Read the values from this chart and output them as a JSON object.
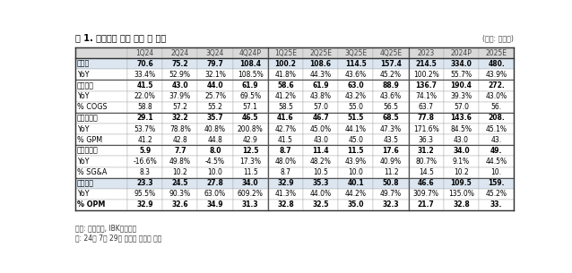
{
  "title": "표 1. 산일전기 실적 추이 및 전망",
  "unit": "(단위: 십억원)",
  "footnote1": "자료: 산일전기, IBK투자증권",
  "footnote2": "주: 24년 7월 29일 코스피 시장에 상장",
  "columns": [
    "",
    "1Q24",
    "2Q24",
    "3Q24",
    "4Q24P",
    "1Q25E",
    "2Q25E",
    "3Q25E",
    "4Q25E",
    "2023",
    "2024P",
    "2025E"
  ],
  "rows": [
    {
      "label": "매출액",
      "bold": true,
      "highlight": true,
      "sep_above": true,
      "values": [
        "70.6",
        "75.2",
        "79.7",
        "108.4",
        "100.2",
        "108.6",
        "114.5",
        "157.4",
        "214.5",
        "334.0",
        "480."
      ]
    },
    {
      "label": "YoY",
      "bold": false,
      "highlight": false,
      "sep_above": false,
      "values": [
        "33.4%",
        "52.9%",
        "32.1%",
        "108.5%",
        "41.8%",
        "44.3%",
        "43.6%",
        "45.2%",
        "100.2%",
        "55.7%",
        "43.9%"
      ]
    },
    {
      "label": "매출원가",
      "bold": true,
      "highlight": false,
      "sep_above": true,
      "values": [
        "41.5",
        "43.0",
        "44.0",
        "61.9",
        "58.6",
        "61.9",
        "63.0",
        "88.9",
        "136.7",
        "190.4",
        "272."
      ]
    },
    {
      "label": "YoY",
      "bold": false,
      "highlight": false,
      "sep_above": false,
      "values": [
        "22.0%",
        "37.9%",
        "25.7%",
        "69.5%",
        "41.2%",
        "43.8%",
        "43.2%",
        "43.6%",
        "74.1%",
        "39.3%",
        "43.0%"
      ]
    },
    {
      "label": "% COGS",
      "bold": false,
      "highlight": false,
      "sep_above": false,
      "values": [
        "58.8",
        "57.2",
        "55.2",
        "57.1",
        "58.5",
        "57.0",
        "55.0",
        "56.5",
        "63.7",
        "57.0",
        "56."
      ]
    },
    {
      "label": "매출총이익",
      "bold": true,
      "highlight": false,
      "sep_above": true,
      "values": [
        "29.1",
        "32.2",
        "35.7",
        "46.5",
        "41.6",
        "46.7",
        "51.5",
        "68.5",
        "77.8",
        "143.6",
        "208."
      ]
    },
    {
      "label": "YoY",
      "bold": false,
      "highlight": false,
      "sep_above": false,
      "values": [
        "53.7%",
        "78.8%",
        "40.8%",
        "200.8%",
        "42.7%",
        "45.0%",
        "44.1%",
        "47.3%",
        "171.6%",
        "84.5%",
        "45.1%"
      ]
    },
    {
      "label": "% GPM",
      "bold": false,
      "highlight": false,
      "sep_above": false,
      "values": [
        "41.2",
        "42.8",
        "44.8",
        "42.9",
        "41.5",
        "43.0",
        "45.0",
        "43.5",
        "36.3",
        "43.0",
        "43."
      ]
    },
    {
      "label": "판매관리비",
      "bold": true,
      "highlight": false,
      "sep_above": true,
      "values": [
        "5.9",
        "7.7",
        "8.0",
        "12.5",
        "8.7",
        "11.4",
        "11.5",
        "17.6",
        "31.2",
        "34.0",
        "49."
      ]
    },
    {
      "label": "YoY",
      "bold": false,
      "highlight": false,
      "sep_above": false,
      "values": [
        "-16.6%",
        "49.8%",
        "-4.5%",
        "17.3%",
        "48.0%",
        "48.2%",
        "43.9%",
        "40.9%",
        "80.7%",
        "9.1%",
        "44.5%"
      ]
    },
    {
      "label": "% SG&A",
      "bold": false,
      "highlight": false,
      "sep_above": false,
      "values": [
        "8.3",
        "10.2",
        "10.0",
        "11.5",
        "8.7",
        "10.5",
        "10.0",
        "11.2",
        "14.5",
        "10.2",
        "10."
      ]
    },
    {
      "label": "영업이익",
      "bold": true,
      "highlight": true,
      "sep_above": true,
      "values": [
        "23.3",
        "24.5",
        "27.8",
        "34.0",
        "32.9",
        "35.3",
        "40.1",
        "50.8",
        "46.6",
        "109.5",
        "159."
      ]
    },
    {
      "label": "YoY",
      "bold": false,
      "highlight": false,
      "sep_above": false,
      "values": [
        "95.5%",
        "90.3%",
        "63.0%",
        "609.2%",
        "41.3%",
        "44.0%",
        "44.2%",
        "49.7%",
        "309.7%",
        "135.0%",
        "45.2%"
      ]
    },
    {
      "label": "% OPM",
      "bold": true,
      "highlight": false,
      "sep_above": false,
      "values": [
        "32.9",
        "32.6",
        "34.9",
        "31.3",
        "32.8",
        "32.5",
        "35.0",
        "32.3",
        "21.7",
        "32.8",
        "33."
      ]
    }
  ],
  "col_separators": [
    4,
    8
  ],
  "header_bg": "#d9d9d9",
  "highlight_bg": "#dce6f1",
  "white_bg": "#ffffff",
  "sep_line_color": "#555555",
  "thin_line_color": "#aaaaaa",
  "outer_line_color": "#333333"
}
